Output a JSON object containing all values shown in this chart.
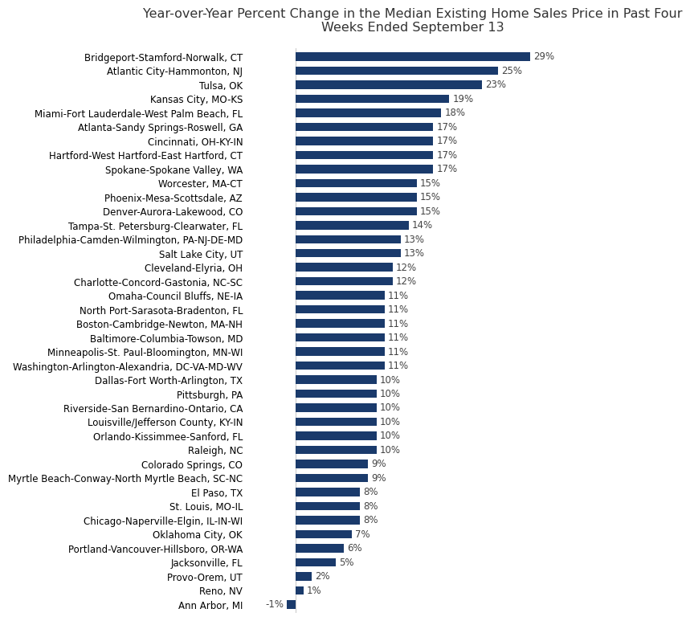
{
  "title": "Year-over-Year Percent Change in the Median Existing Home Sales Price in Past Four\nWeeks Ended September 13",
  "bar_color": "#1a3a6b",
  "categories": [
    "Bridgeport-Stamford-Norwalk, CT",
    "Atlantic City-Hammonton, NJ",
    "Tulsa, OK",
    "Kansas City, MO-KS",
    "Miami-Fort Lauderdale-West Palm Beach, FL",
    "Atlanta-Sandy Springs-Roswell, GA",
    "Cincinnati, OH-KY-IN",
    "Hartford-West Hartford-East Hartford, CT",
    "Spokane-Spokane Valley, WA",
    "Worcester, MA-CT",
    "Phoenix-Mesa-Scottsdale, AZ",
    "Denver-Aurora-Lakewood, CO",
    "Tampa-St. Petersburg-Clearwater, FL",
    "Philadelphia-Camden-Wilmington, PA-NJ-DE-MD",
    "Salt Lake City, UT",
    "Cleveland-Elyria, OH",
    "Charlotte-Concord-Gastonia, NC-SC",
    "Omaha-Council Bluffs, NE-IA",
    "North Port-Sarasota-Bradenton, FL",
    "Boston-Cambridge-Newton, MA-NH",
    "Baltimore-Columbia-Towson, MD",
    "Minneapolis-St. Paul-Bloomington, MN-WI",
    "Washington-Arlington-Alexandria, DC-VA-MD-WV",
    "Dallas-Fort Worth-Arlington, TX",
    "Pittsburgh, PA",
    "Riverside-San Bernardino-Ontario, CA",
    "Louisville/Jefferson County, KY-IN",
    "Orlando-Kissimmee-Sanford, FL",
    "Raleigh, NC",
    "Colorado Springs, CO",
    "Myrtle Beach-Conway-North Myrtle Beach, SC-NC",
    "El Paso, TX",
    "St. Louis, MO-IL",
    "Chicago-Naperville-Elgin, IL-IN-WI",
    "Oklahoma City, OK",
    "Portland-Vancouver-Hillsboro, OR-WA",
    "Jacksonville, FL",
    "Provo-Orem, UT",
    "Reno, NV",
    "Ann Arbor, MI"
  ],
  "values": [
    29,
    25,
    23,
    19,
    18,
    17,
    17,
    17,
    17,
    15,
    15,
    15,
    14,
    13,
    13,
    12,
    12,
    11,
    11,
    11,
    11,
    11,
    11,
    10,
    10,
    10,
    10,
    10,
    10,
    9,
    9,
    8,
    8,
    8,
    7,
    6,
    5,
    2,
    1,
    -1
  ],
  "title_fontsize": 11.5,
  "label_fontsize": 8.5,
  "value_fontsize": 8.5,
  "background_color": "#ffffff",
  "bar_height": 0.6,
  "xlim_left": -6,
  "xlim_right": 35
}
